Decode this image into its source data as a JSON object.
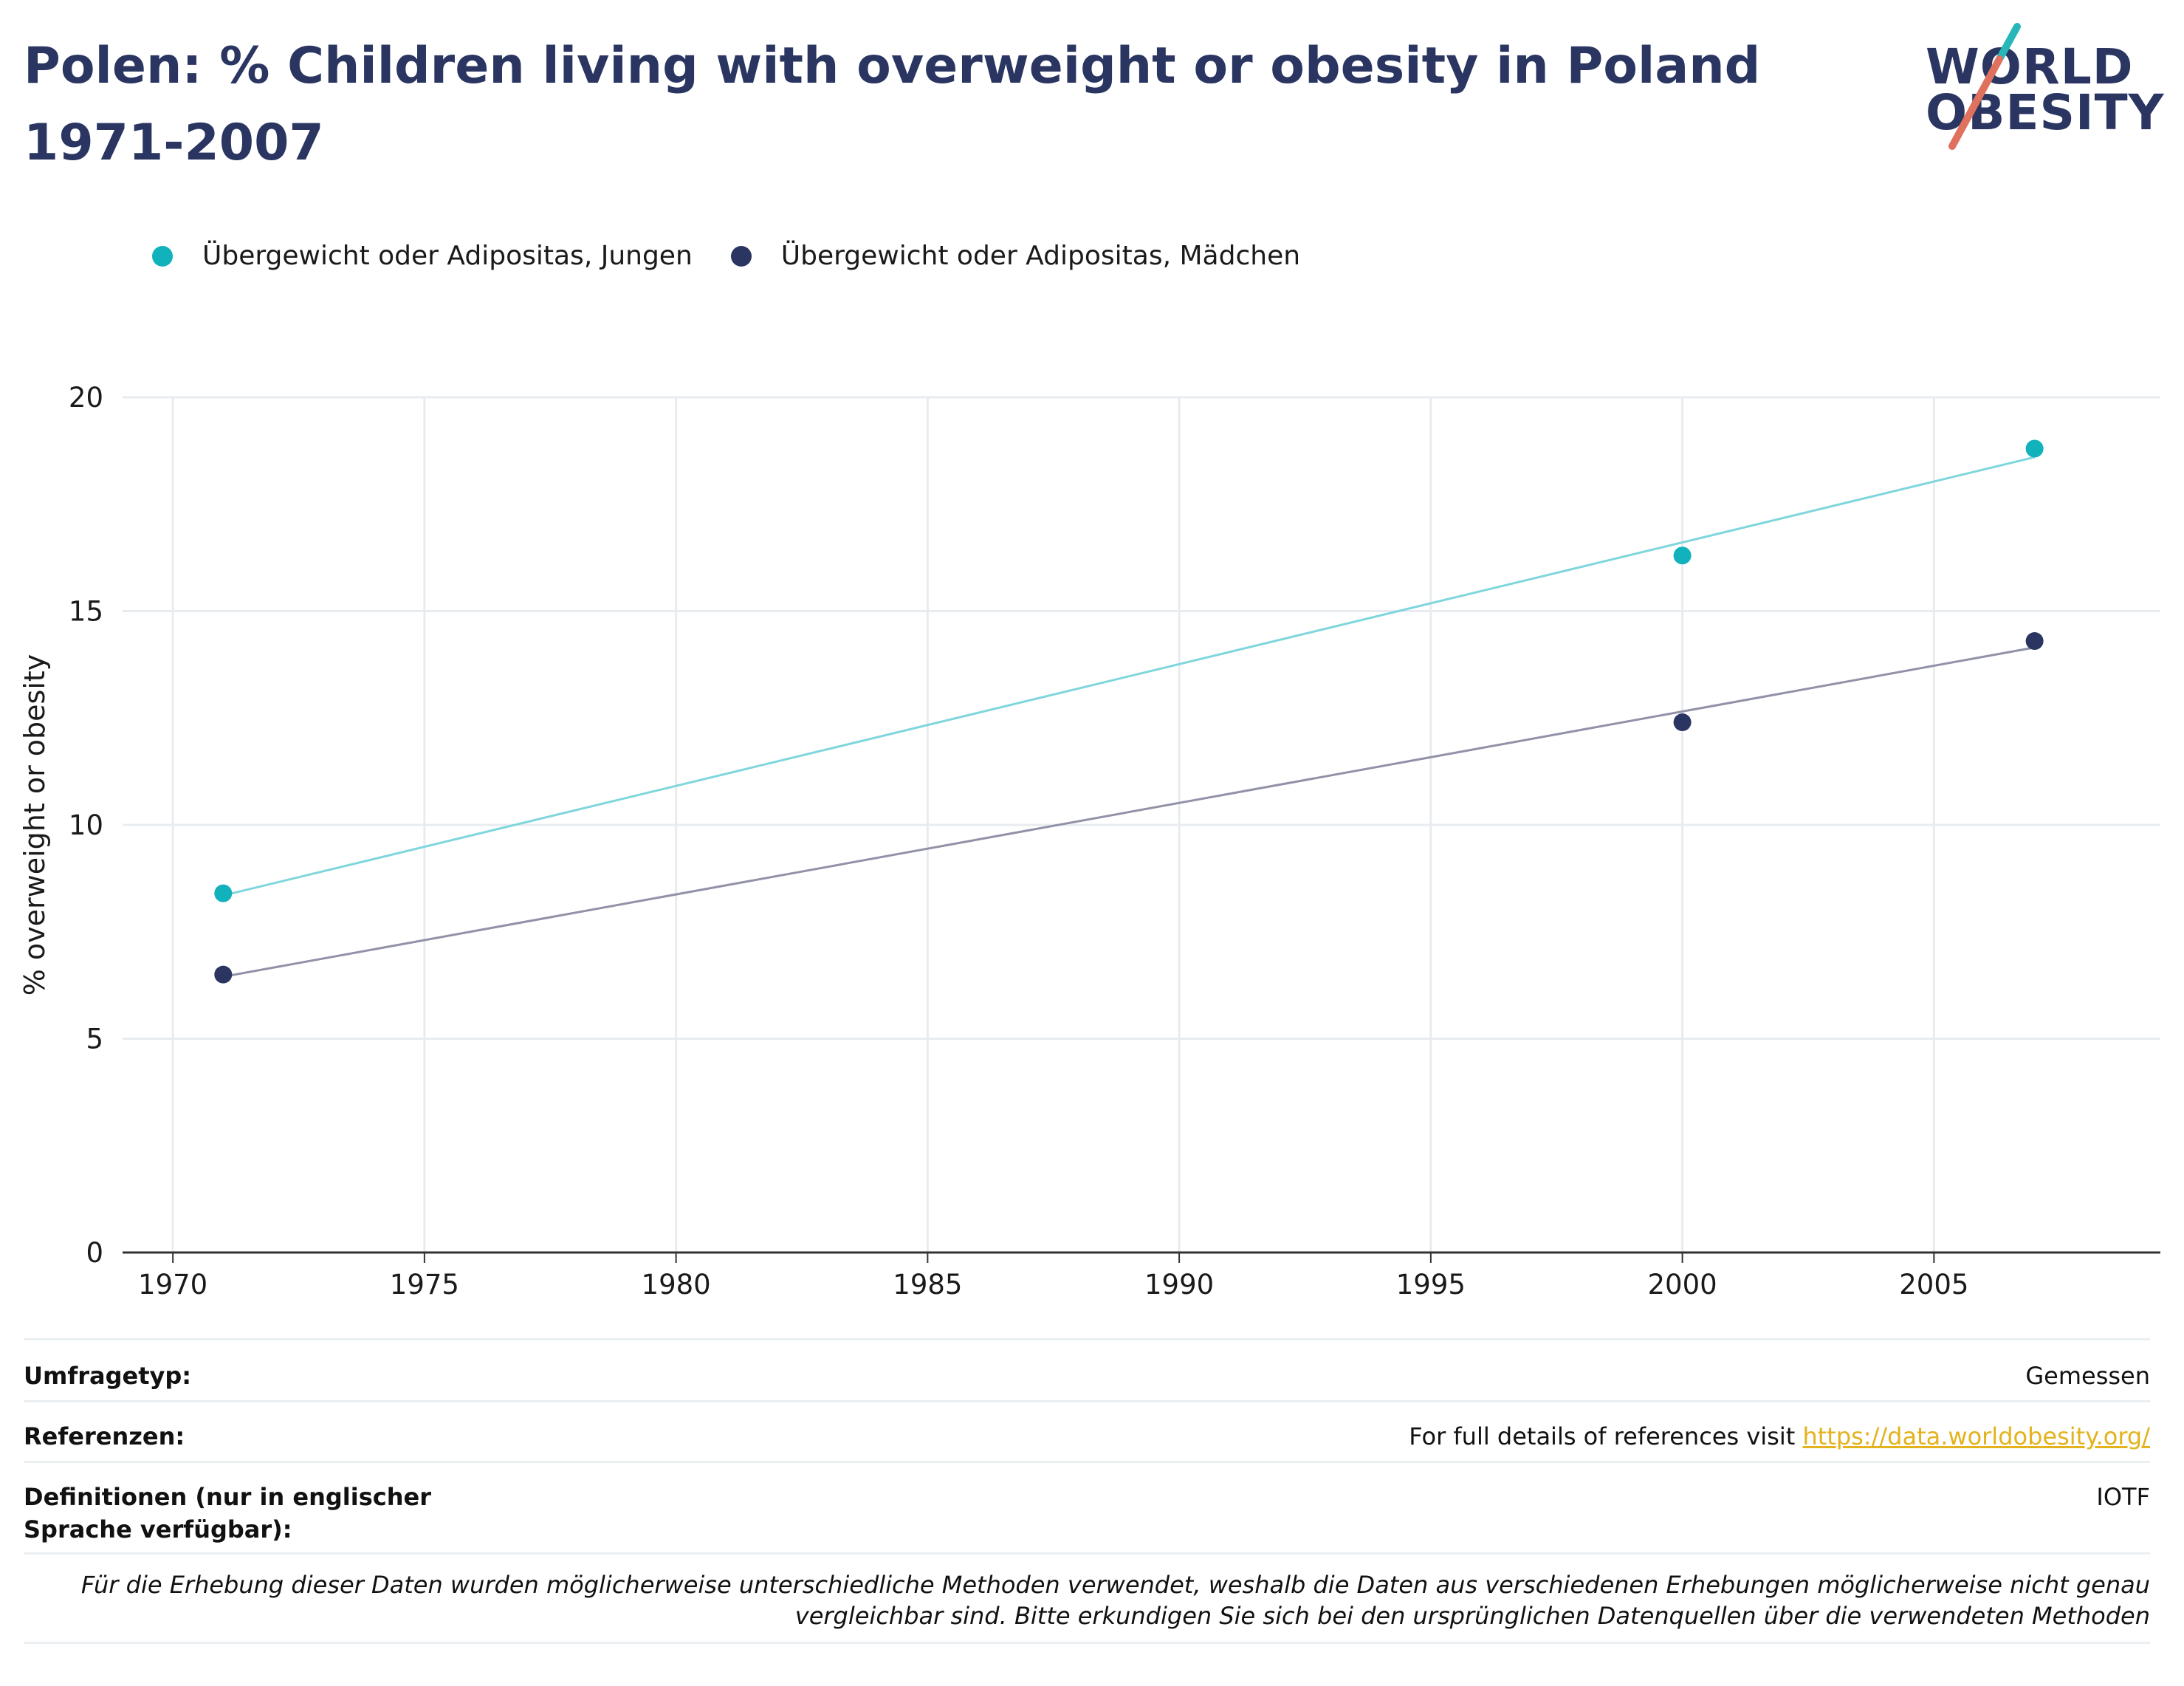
{
  "header": {
    "title": "Polen: % Children living with overweight or obesity in Poland 1971-2007"
  },
  "logo": {
    "line1": "WORLD",
    "line2": "OBESITY",
    "colors": {
      "text": "#2a3661",
      "slash_top": "#27b6b9",
      "slash_bottom": "#e0715e"
    }
  },
  "legend": [
    {
      "label": "Übergewicht oder Adipositas, Jungen",
      "color": "#12b2bd"
    },
    {
      "label": "Übergewicht oder Adipositas, Mädchen",
      "color": "#2a3661"
    }
  ],
  "chart_data": {
    "type": "scatter",
    "title": "Polen: % Children living with overweight or obesity in Poland 1971-2007",
    "xlabel": "",
    "ylabel": "% overweight or obesity",
    "xlim": [
      1969,
      2009.5
    ],
    "ylim": [
      0,
      20
    ],
    "xticks": [
      1970,
      1975,
      1980,
      1985,
      1990,
      1995,
      2000,
      2005
    ],
    "yticks": [
      0,
      5,
      10,
      15,
      20
    ],
    "grid": true,
    "legend_position": "top-left",
    "series": [
      {
        "name": "Übergewicht oder Adipositas, Jungen",
        "color": "#12b2bd",
        "trend_color": "#7fd6dc",
        "x": [
          1971,
          2000,
          2007
        ],
        "y": [
          8.4,
          16.3,
          18.8
        ],
        "trend": [
          [
            1971,
            8.35
          ],
          [
            2007,
            18.6
          ]
        ]
      },
      {
        "name": "Übergewicht oder Adipositas, Mädchen",
        "color": "#2a3661",
        "trend_color": "#9191a8",
        "x": [
          1971,
          2000,
          2007
        ],
        "y": [
          6.5,
          12.4,
          14.3
        ],
        "trend": [
          [
            1971,
            6.45
          ],
          [
            2007,
            14.15
          ]
        ]
      }
    ]
  },
  "meta": {
    "survey_type_label": "Umfragetyp:",
    "survey_type_value": "Gemessen",
    "references_label": "Referenzen:",
    "references_text": "For full details of references visit ",
    "references_link": "https://data.worldobesity.org/",
    "definitions_label": "Definitionen (nur in englischer Sprache verfügbar):",
    "definitions_value": "IOTF",
    "note": "Für die Erhebung dieser Daten wurden möglicherweise unterschiedliche Methoden verwendet, weshalb die Daten aus verschiedenen Erhebungen möglicherweise nicht genau vergleichbar sind. Bitte erkundigen Sie sich bei den ursprünglichen Datenquellen über die verwendeten Methoden"
  }
}
